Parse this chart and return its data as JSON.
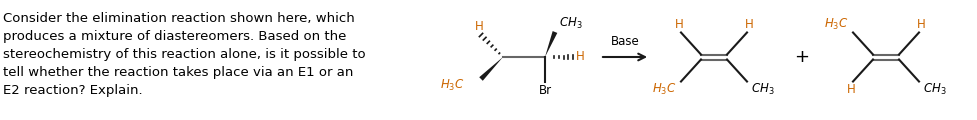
{
  "text_color": "#000000",
  "bond_color": "#1a1a1a",
  "orange_color": "#cc6600",
  "bg_color": "#ffffff",
  "question_lines": [
    "Consider the elimination reaction shown here, which",
    "produces a mixture of diastereomers. Based on the",
    "stereochemistry of this reaction alone, is it possible to",
    "tell whether the reaction takes place via an E1 or an",
    "E2 reaction? Explain."
  ],
  "fontsize_text": 9.5
}
